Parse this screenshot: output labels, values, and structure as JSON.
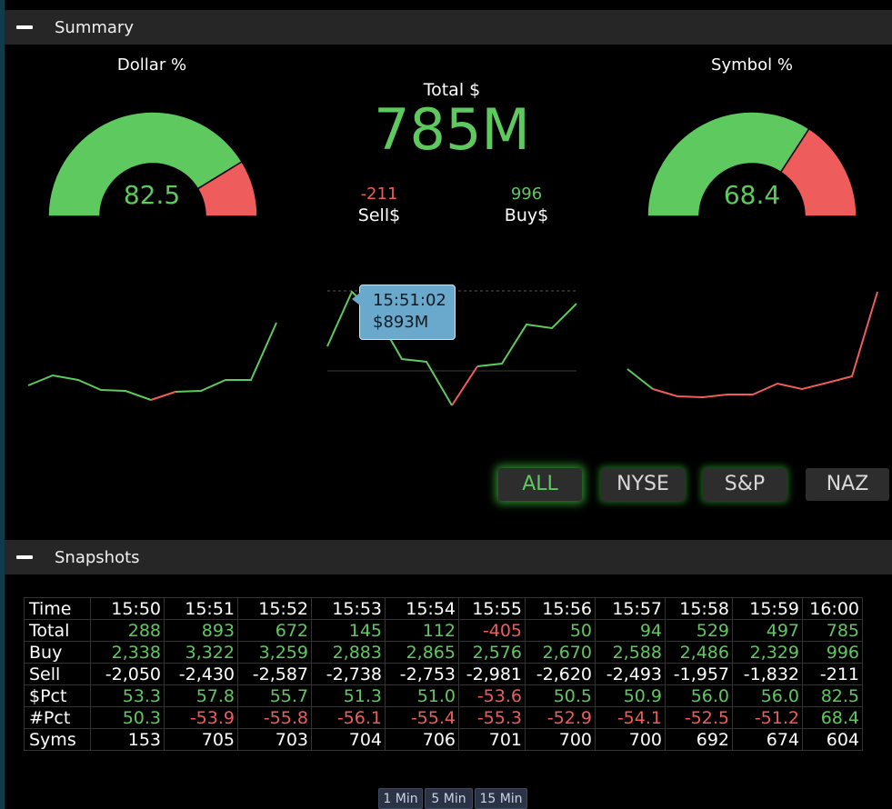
{
  "summary": {
    "title": "Summary",
    "dollar_pct": {
      "label": "Dollar %",
      "value": "82.5",
      "fraction": 0.825
    },
    "symbol_pct": {
      "label": "Symbol %",
      "value": "68.4",
      "fraction": 0.684
    },
    "total": {
      "label": "Total $",
      "value": "785M"
    },
    "sell": {
      "value": "-211",
      "label": "Sell$"
    },
    "buy": {
      "value": "996",
      "label": "Buy$"
    },
    "tooltip": {
      "time": "15:51:02",
      "value": "$893M"
    },
    "filters": [
      "ALL",
      "NYSE",
      "S&P",
      "NAZ"
    ],
    "active_filter": "ALL"
  },
  "snapshots": {
    "title": "Snapshots",
    "times": [
      "15:50",
      "15:51",
      "15:52",
      "15:53",
      "15:54",
      "15:55",
      "15:56",
      "15:57",
      "15:58",
      "15:59",
      "16:00"
    ],
    "rows": [
      {
        "label": "Time",
        "values": [
          "15:50",
          "15:51",
          "15:52",
          "15:53",
          "15:54",
          "15:55",
          "15:56",
          "15:57",
          "15:58",
          "15:59",
          "16:00"
        ],
        "colors": [
          "w",
          "w",
          "w",
          "w",
          "w",
          "w",
          "w",
          "w",
          "w",
          "w",
          "w"
        ]
      },
      {
        "label": "Total",
        "values": [
          "288",
          "893",
          "672",
          "145",
          "112",
          "-405",
          "50",
          "94",
          "529",
          "497",
          "785"
        ],
        "colors": [
          "g",
          "g",
          "g",
          "g",
          "g",
          "r",
          "g",
          "g",
          "g",
          "g",
          "g"
        ]
      },
      {
        "label": "Buy",
        "values": [
          "2,338",
          "3,322",
          "3,259",
          "2,883",
          "2,865",
          "2,576",
          "2,670",
          "2,588",
          "2,486",
          "2,329",
          "996"
        ],
        "colors": [
          "g",
          "g",
          "g",
          "g",
          "g",
          "g",
          "g",
          "g",
          "g",
          "g",
          "g"
        ]
      },
      {
        "label": "Sell",
        "values": [
          "-2,050",
          "-2,430",
          "-2,587",
          "-2,738",
          "-2,753",
          "-2,981",
          "-2,620",
          "-2,493",
          "-1,957",
          "-1,832",
          "-211"
        ],
        "colors": [
          "w",
          "w",
          "w",
          "w",
          "w",
          "w",
          "w",
          "w",
          "w",
          "w",
          "w"
        ]
      },
      {
        "label": "$Pct",
        "values": [
          "53.3",
          "57.8",
          "55.7",
          "51.3",
          "51.0",
          "-53.6",
          "50.5",
          "50.9",
          "56.0",
          "56.0",
          "82.5"
        ],
        "colors": [
          "g",
          "g",
          "g",
          "g",
          "g",
          "r",
          "g",
          "g",
          "g",
          "g",
          "g"
        ]
      },
      {
        "label": "#Pct",
        "values": [
          "50.3",
          "-53.9",
          "-55.8",
          "-56.1",
          "-55.4",
          "-55.3",
          "-52.9",
          "-54.1",
          "-52.5",
          "-51.2",
          "68.4"
        ],
        "colors": [
          "g",
          "r",
          "r",
          "r",
          "r",
          "r",
          "r",
          "r",
          "r",
          "r",
          "g"
        ]
      },
      {
        "label": "Syms",
        "values": [
          "153",
          "705",
          "703",
          "704",
          "706",
          "701",
          "700",
          "700",
          "692",
          "674",
          "604"
        ],
        "colors": [
          "w",
          "w",
          "w",
          "w",
          "w",
          "w",
          "w",
          "w",
          "w",
          "w",
          "w"
        ]
      }
    ],
    "timeframes": [
      "1 Min",
      "5 Min",
      "15 Min"
    ]
  },
  "colors": {
    "positive": "#5ec95e",
    "negative": "#ef5c5c",
    "header": "#262626"
  }
}
